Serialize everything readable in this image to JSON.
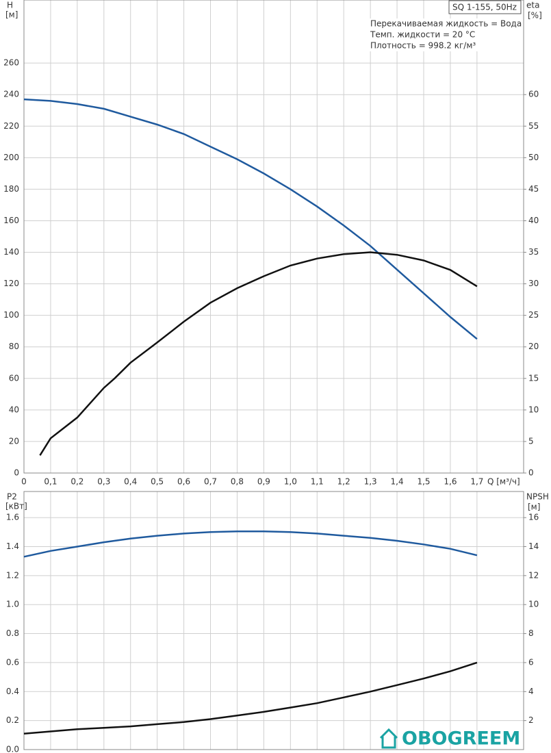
{
  "chart_data": [
    {
      "type": "line",
      "title": "SQ 1-155, 50Hz",
      "annotations": [
        "Перекачиваемая жидкость = Вода",
        "Темп. жидкости = 20 °C",
        "Плотность = 998.2 кг/м³"
      ],
      "ylabel": "H",
      "yunit": "[м]",
      "y2label": "eta",
      "y2unit": "[%]",
      "xlabel": "Q [м³/ч]",
      "xlim": [
        0,
        1.875
      ],
      "xticks": [
        0,
        {
          "value": 0.1,
          "label": "0,1"
        },
        {
          "value": 0.2,
          "label": "0,2"
        },
        {
          "value": 0.3,
          "label": "0,3"
        },
        {
          "value": 0.4,
          "label": "0,4"
        },
        {
          "value": 0.5,
          "label": "0,5"
        },
        {
          "value": 0.6,
          "label": "0,6"
        },
        {
          "value": 0.7,
          "label": "0,7"
        },
        {
          "value": 0.8,
          "label": "0,8"
        },
        {
          "value": 0.9,
          "label": "0,9"
        },
        {
          "value": 1.0,
          "label": "1,0"
        },
        {
          "value": 1.1,
          "label": "1,1"
        },
        {
          "value": 1.2,
          "label": "1,2"
        },
        {
          "value": 1.3,
          "label": "1,3"
        },
        {
          "value": 1.4,
          "label": "1,4"
        },
        {
          "value": 1.5,
          "label": "1,5"
        },
        {
          "value": 1.6,
          "label": "1,6"
        },
        {
          "value": 1.7,
          "label": "1,7"
        }
      ],
      "ylim": [
        0,
        300
      ],
      "yticks": [
        0,
        20,
        40,
        60,
        80,
        100,
        120,
        140,
        160,
        180,
        200,
        220,
        240,
        260
      ],
      "y2lim": [
        0,
        75
      ],
      "y2ticks": [
        0,
        5,
        10,
        15,
        20,
        25,
        30,
        35,
        40,
        45,
        50,
        55,
        60
      ],
      "grid": true,
      "series": [
        {
          "color": "#1f5a9e",
          "axis": "y",
          "x": [
            0,
            0.1,
            0.2,
            0.3,
            0.4,
            0.5,
            0.6,
            0.7,
            0.8,
            0.9,
            1.0,
            1.1,
            1.2,
            1.3,
            1.4,
            1.5,
            1.6,
            1.7
          ],
          "values": [
            237,
            236,
            234,
            231,
            226,
            221,
            215,
            207,
            199,
            190,
            180,
            169,
            157,
            144,
            129,
            114,
            99,
            85
          ]
        },
        {
          "color": "#111111",
          "axis": "y2",
          "x": [
            0.06,
            0.1,
            0.2,
            0.3,
            0.34,
            0.4,
            0.5,
            0.6,
            0.7,
            0.8,
            0.9,
            1.0,
            1.1,
            1.2,
            1.3,
            1.4,
            1.5,
            1.6,
            1.7
          ],
          "values": [
            2.8,
            5.5,
            8.8,
            13.5,
            15,
            17.5,
            20.7,
            24,
            27,
            29.3,
            31.2,
            32.9,
            34,
            34.7,
            35,
            34.6,
            33.7,
            32.2,
            29.6
          ]
        }
      ]
    },
    {
      "type": "line",
      "ylabel": "P2",
      "yunit": "[кВт]",
      "y2label": "NPSH",
      "y2unit": "[м]",
      "xlim": [
        0,
        1.875
      ],
      "ylim": [
        0,
        1.78
      ],
      "yticks": [
        {
          "value": 0,
          "label": "0.0"
        },
        0.2,
        0.4,
        0.6,
        0.8,
        {
          "value": 1,
          "label": "1.0"
        },
        1.2,
        1.4,
        1.6
      ],
      "y2lim": [
        0,
        17.8
      ],
      "y2ticks": [
        2,
        4,
        6,
        8,
        10,
        12,
        14,
        16
      ],
      "grid": true,
      "series": [
        {
          "color": "#1f5a9e",
          "axis": "y",
          "x": [
            0,
            0.1,
            0.2,
            0.3,
            0.4,
            0.5,
            0.6,
            0.7,
            0.8,
            0.9,
            1.0,
            1.1,
            1.2,
            1.3,
            1.4,
            1.5,
            1.6,
            1.7
          ],
          "values": [
            1.33,
            1.37,
            1.4,
            1.43,
            1.455,
            1.475,
            1.49,
            1.5,
            1.505,
            1.505,
            1.5,
            1.49,
            1.475,
            1.46,
            1.44,
            1.415,
            1.385,
            1.34
          ]
        },
        {
          "color": "#111111",
          "axis": "y2",
          "x": [
            0,
            0.1,
            0.2,
            0.3,
            0.4,
            0.5,
            0.6,
            0.7,
            0.8,
            0.9,
            1.0,
            1.1,
            1.2,
            1.3,
            1.4,
            1.5,
            1.6,
            1.7
          ],
          "values": [
            1.1,
            1.25,
            1.4,
            1.5,
            1.6,
            1.75,
            1.9,
            2.1,
            2.35,
            2.6,
            2.9,
            3.2,
            3.6,
            4.0,
            4.45,
            4.9,
            5.4,
            6.0
          ]
        }
      ]
    }
  ],
  "watermark": "OBOGREEM"
}
